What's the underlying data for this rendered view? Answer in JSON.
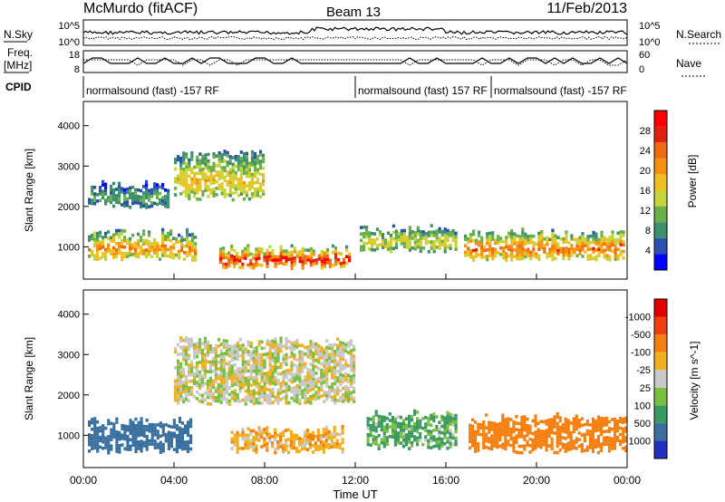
{
  "header": {
    "station": "McMurdo (fitACF)",
    "beam": "Beam 13",
    "date": "11/Feb/2013"
  },
  "noise_panel": {
    "left_label": "N.Sky",
    "right_label": "N.Search",
    "ticks_left": [
      "10^5",
      "10^0"
    ],
    "ticks_right": [
      "10^5",
      "10^0"
    ]
  },
  "freq_panel": {
    "left_label_1": "Freq.",
    "left_label_2": "[MHz]",
    "right_label": "Nave",
    "ticks_left": [
      "18",
      "8"
    ],
    "ticks_right": [
      "60",
      "0"
    ]
  },
  "cpid": {
    "label": "CPID",
    "segments": [
      {
        "start_hour": 0.0,
        "text": "normalsound (fast) -157 RF"
      },
      {
        "start_hour": 12.0,
        "text": "normalsound (fast) 157 RF"
      },
      {
        "start_hour": 18.0,
        "text": "normalsound (fast) -157 RF"
      }
    ]
  },
  "chart_data": [
    {
      "type": "heatmap",
      "parameter": "Power",
      "ylabel": "Slant Range [km]",
      "yticks": [
        1000,
        2000,
        3000,
        4000
      ],
      "ylim": [
        200,
        4600
      ],
      "colorbar": {
        "label": "Power [dB]",
        "ticks": [
          "4",
          "8",
          "12",
          "16",
          "20",
          "24",
          "28"
        ],
        "colors": [
          "#0000ff",
          "#2a50b0",
          "#3d8f6e",
          "#6ab04a",
          "#c8d43a",
          "#f0c020",
          "#f59010",
          "#f06a10",
          "#e02010",
          "#ff0000"
        ]
      },
      "bands": [
        {
          "range_km": [
            700,
            1300
          ],
          "hours": [
            0.2,
            5.0
          ],
          "level": 20
        },
        {
          "range_km": [
            500,
            900
          ],
          "hours": [
            6.0,
            11.8
          ],
          "level": 28
        },
        {
          "range_km": [
            900,
            1400
          ],
          "hours": [
            12.2,
            16.5
          ],
          "level": 14
        },
        {
          "range_km": [
            700,
            1300
          ],
          "hours": [
            16.8,
            23.9
          ],
          "level": 22
        },
        {
          "range_km": [
            2000,
            2500
          ],
          "hours": [
            0.2,
            3.8
          ],
          "level": 8
        },
        {
          "range_km": [
            2200,
            3300
          ],
          "hours": [
            4.0,
            8.0
          ],
          "level": 16
        }
      ]
    },
    {
      "type": "heatmap",
      "parameter": "Velocity",
      "ylabel": "Slant Range [km]",
      "xlabel": "Time UT",
      "xticks": [
        "00:00",
        "04:00",
        "08:00",
        "12:00",
        "16:00",
        "20:00",
        "00:00"
      ],
      "yticks": [
        1000,
        2000,
        3000,
        4000
      ],
      "ylim": [
        200,
        4600
      ],
      "colorbar": {
        "label": "Velocity [m s^-1]",
        "ticks": [
          "1000",
          "500",
          "100",
          "25",
          "-25",
          "-100",
          "-500",
          "-1000"
        ],
        "colors": [
          "#2030c0",
          "#3a70a0",
          "#3a9a60",
          "#7ac040",
          "#c8c8c8",
          "#f0b020",
          "#f58010",
          "#f04010",
          "#e00000"
        ]
      },
      "bands": [
        {
          "range_km": [
            600,
            1300
          ],
          "hours": [
            0.2,
            4.8
          ],
          "velocity": 300
        },
        {
          "range_km": [
            600,
            1100
          ],
          "hours": [
            6.5,
            11.5
          ],
          "velocity": -70
        },
        {
          "range_km": [
            1800,
            3300
          ],
          "hours": [
            4.0,
            12.0
          ],
          "velocity": 0
        },
        {
          "range_km": [
            700,
            1500
          ],
          "hours": [
            12.5,
            16.5
          ],
          "velocity": 80
        },
        {
          "range_km": [
            600,
            1400
          ],
          "hours": [
            17.0,
            24.0
          ],
          "velocity": -200
        }
      ]
    }
  ]
}
